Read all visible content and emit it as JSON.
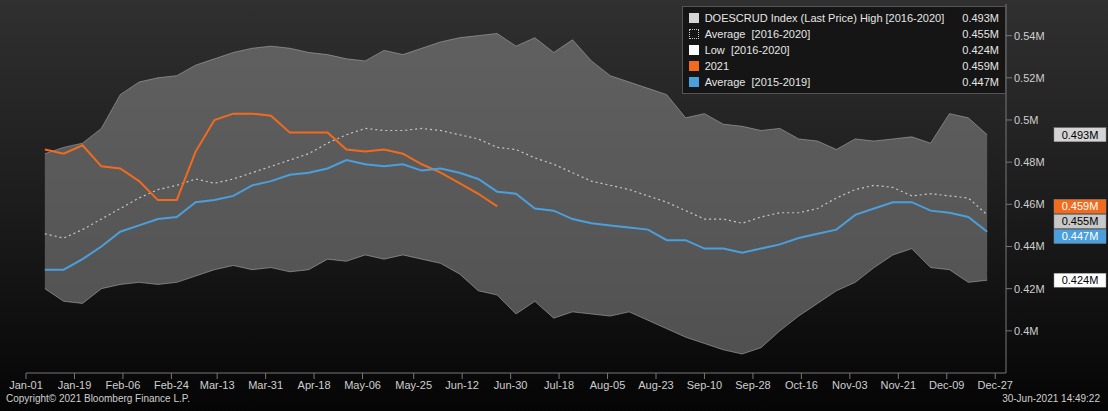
{
  "chart_data": {
    "type": "line",
    "x": [
      8,
      15,
      22,
      29,
      36,
      43,
      50,
      57,
      64,
      71,
      78,
      85,
      92,
      99,
      106,
      113,
      120,
      127,
      134,
      141,
      148,
      155,
      162,
      169,
      176,
      183,
      190,
      197,
      204,
      211,
      218,
      225,
      232,
      239,
      246,
      253,
      260,
      267,
      274,
      281,
      288,
      295,
      302,
      309,
      316,
      323,
      330,
      337,
      344,
      351,
      358
    ],
    "xlim": [
      1,
      365
    ],
    "xticks": [
      {
        "value": 1,
        "label": "Jan-01"
      },
      {
        "value": 19,
        "label": "Jan-19"
      },
      {
        "value": 37,
        "label": "Feb-06"
      },
      {
        "value": 55,
        "label": "Feb-24"
      },
      {
        "value": 72,
        "label": "Mar-13"
      },
      {
        "value": 90,
        "label": "Mar-31"
      },
      {
        "value": 108,
        "label": "Apr-18"
      },
      {
        "value": 126,
        "label": "May-06"
      },
      {
        "value": 145,
        "label": "May-25"
      },
      {
        "value": 163,
        "label": "Jun-12"
      },
      {
        "value": 181,
        "label": "Jun-30"
      },
      {
        "value": 199,
        "label": "Jul-18"
      },
      {
        "value": 217,
        "label": "Aug-05"
      },
      {
        "value": 235,
        "label": "Aug-23"
      },
      {
        "value": 253,
        "label": "Sep-10"
      },
      {
        "value": 271,
        "label": "Sep-28"
      },
      {
        "value": 289,
        "label": "Oct-16"
      },
      {
        "value": 307,
        "label": "Nov-03"
      },
      {
        "value": 325,
        "label": "Nov-21"
      },
      {
        "value": 343,
        "label": "Dec-09"
      },
      {
        "value": 361,
        "label": "Dec-27"
      }
    ],
    "ylim": [
      0.38,
      0.555
    ],
    "yticks": [
      {
        "value": 0.4,
        "label": "0.4M"
      },
      {
        "value": 0.42,
        "label": "0.42M"
      },
      {
        "value": 0.44,
        "label": "0.44M"
      },
      {
        "value": 0.46,
        "label": "0.46M"
      },
      {
        "value": 0.48,
        "label": "0.48M"
      },
      {
        "value": 0.5,
        "label": "0.5M"
      },
      {
        "value": 0.52,
        "label": "0.52M"
      },
      {
        "value": 0.54,
        "label": "0.54M"
      }
    ],
    "grid": false,
    "legend": "top-right",
    "series": [
      {
        "name": "DOESCRUD Index (Last Price) High [2016-2020]",
        "type": "area",
        "color": "#d4d4d4",
        "last_label": "0.493M",
        "values": [
          0.484,
          0.487,
          0.489,
          0.496,
          0.512,
          0.518,
          0.52,
          0.521,
          0.526,
          0.529,
          0.532,
          0.534,
          0.535,
          0.534,
          0.532,
          0.531,
          0.529,
          0.528,
          0.533,
          0.531,
          0.534,
          0.537,
          0.539,
          0.54,
          0.541,
          0.535,
          0.539,
          0.532,
          0.538,
          0.528,
          0.521,
          0.518,
          0.515,
          0.512,
          0.501,
          0.503,
          0.498,
          0.497,
          0.495,
          0.496,
          0.491,
          0.49,
          0.486,
          0.491,
          0.49,
          0.491,
          0.492,
          0.489,
          0.503,
          0.501,
          0.493
        ]
      },
      {
        "name": "Average  [2016-2020]",
        "type": "line",
        "line_style": "dotted",
        "color": "#c8c8c8",
        "last_label": "0.455M",
        "values": [
          0.446,
          0.444,
          0.448,
          0.453,
          0.458,
          0.463,
          0.467,
          0.469,
          0.472,
          0.47,
          0.472,
          0.475,
          0.478,
          0.481,
          0.484,
          0.489,
          0.493,
          0.496,
          0.495,
          0.495,
          0.496,
          0.495,
          0.493,
          0.491,
          0.487,
          0.486,
          0.482,
          0.479,
          0.475,
          0.471,
          0.469,
          0.467,
          0.464,
          0.461,
          0.457,
          0.453,
          0.453,
          0.451,
          0.454,
          0.456,
          0.456,
          0.458,
          0.463,
          0.467,
          0.469,
          0.468,
          0.464,
          0.465,
          0.464,
          0.463,
          0.455
        ]
      },
      {
        "name": "Low  [2016-2020]",
        "type": "area",
        "color": "#ffffff",
        "last_label": "0.424M",
        "values": [
          0.42,
          0.414,
          0.413,
          0.42,
          0.422,
          0.423,
          0.422,
          0.423,
          0.426,
          0.429,
          0.431,
          0.429,
          0.43,
          0.428,
          0.429,
          0.434,
          0.433,
          0.436,
          0.434,
          0.436,
          0.434,
          0.432,
          0.427,
          0.419,
          0.417,
          0.408,
          0.414,
          0.406,
          0.409,
          0.408,
          0.407,
          0.409,
          0.405,
          0.401,
          0.397,
          0.394,
          0.391,
          0.389,
          0.392,
          0.4,
          0.407,
          0.413,
          0.419,
          0.423,
          0.43,
          0.436,
          0.439,
          0.43,
          0.429,
          0.423,
          0.424
        ]
      },
      {
        "name": "2021",
        "type": "line",
        "line_style": "solid",
        "color": "#f26b1d",
        "last_label": "0.459M",
        "values": [
          0.486,
          0.484,
          0.488,
          0.478,
          0.477,
          0.471,
          0.462,
          0.462,
          0.485,
          0.5,
          0.503,
          0.503,
          0.502,
          0.494,
          0.494,
          0.494,
          0.486,
          0.485,
          0.486,
          0.484,
          0.479,
          0.475,
          0.47,
          0.465,
          0.459,
          null,
          null,
          null,
          null,
          null,
          null,
          null,
          null,
          null,
          null,
          null,
          null,
          null,
          null,
          null,
          null,
          null,
          null,
          null,
          null,
          null,
          null,
          null,
          null,
          null,
          null
        ]
      },
      {
        "name": "Average  [2015-2019]",
        "type": "line",
        "line_style": "solid",
        "color": "#4a9fdc",
        "last_label": "0.447M",
        "values": [
          0.429,
          0.429,
          0.434,
          0.44,
          0.447,
          0.45,
          0.453,
          0.454,
          0.461,
          0.462,
          0.464,
          0.469,
          0.471,
          0.474,
          0.475,
          0.477,
          0.481,
          0.479,
          0.478,
          0.479,
          0.476,
          0.477,
          0.475,
          0.472,
          0.466,
          0.465,
          0.458,
          0.457,
          0.453,
          0.451,
          0.45,
          0.449,
          0.448,
          0.443,
          0.443,
          0.439,
          0.439,
          0.437,
          0.439,
          0.441,
          0.444,
          0.446,
          0.448,
          0.455,
          0.458,
          0.461,
          0.461,
          0.457,
          0.456,
          0.454,
          0.447
        ]
      }
    ],
    "copyright": "Copyright© 2021 Bloomberg Finance L.P.",
    "timestamp": "30-Jun-2021 14:49:22"
  }
}
